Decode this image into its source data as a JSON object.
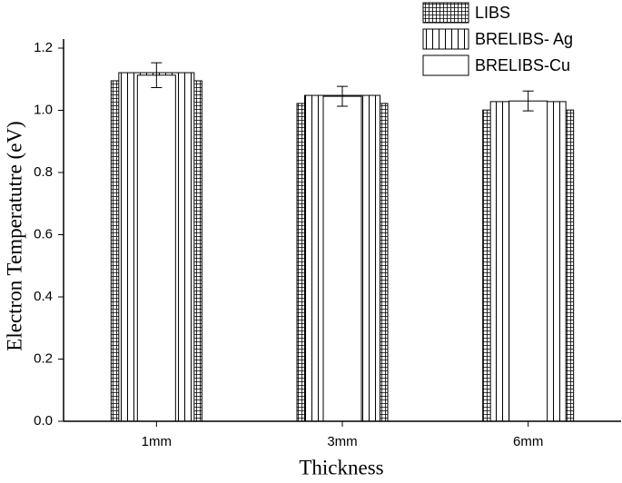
{
  "chart_data": {
    "type": "bar",
    "x_label": "Thickness",
    "y_label": "Electron Temperatutre (eV)",
    "categories": [
      "1mm",
      "3mm",
      "6mm"
    ],
    "series": [
      {
        "name": "LIBS",
        "color": "#ffffff",
        "pattern": "grid",
        "values": [
          1.095,
          1.022,
          1.001
        ]
      },
      {
        "name": "BRELIBS- Ag",
        "color": "#ffffff",
        "pattern": "vertical",
        "values": [
          1.121,
          1.048,
          1.028
        ]
      },
      {
        "name": "BRELIBS-Cu",
        "color": "#ffffff",
        "pattern": "none",
        "values": [
          1.113,
          1.045,
          1.03
        ],
        "errors": [
          0.04,
          0.032,
          0.032
        ]
      }
    ],
    "ylim": [
      0,
      1.2
    ],
    "yticks": [
      {
        "value": 0,
        "label": "0.0"
      },
      0.2,
      0.4,
      0.6,
      0.8,
      {
        "value": 1,
        "label": "1.0"
      },
      1.2
    ],
    "grid": false,
    "legend": "top-right"
  }
}
